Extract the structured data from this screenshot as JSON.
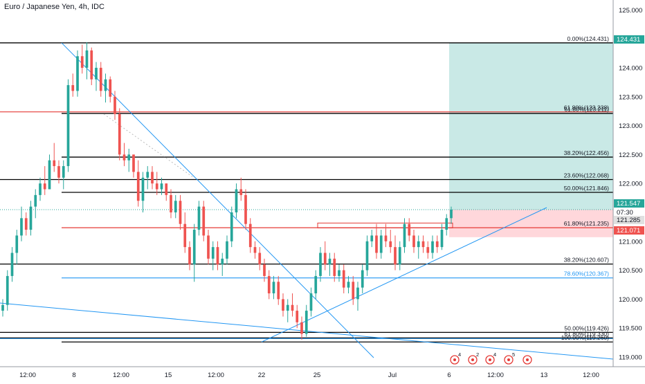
{
  "symbol": {
    "title": "Euro / Japanese Yen, 4h, IDC"
  },
  "colors": {
    "up": "#26a69a",
    "down": "#ef5350",
    "black_line": "#000000",
    "red_line": "#e53935",
    "blue_line": "#2196f3",
    "target_zone": "#b2dfdb",
    "stop_zone": "#ffcdd2",
    "axis_text": "#131722"
  },
  "chart_data": {
    "type": "candlestick",
    "y_axis": {
      "range": [
        118.74,
        125.1
      ],
      "ticks": [
        "125.000",
        "124.500",
        "124.000",
        "123.500",
        "123.000",
        "122.500",
        "122.000",
        "121.500",
        "121.000",
        "120.500",
        "120.000",
        "119.500",
        "119.000"
      ]
    },
    "x_axis": {
      "ticks": [
        "12:00",
        "8",
        "12:00",
        "15",
        "12:00",
        "22",
        "25",
        "Jul",
        "6",
        "12:00",
        "13",
        "12:00"
      ]
    },
    "price_labels": [
      {
        "text": "124.431",
        "value": 124.431,
        "color": "#26a69a"
      },
      {
        "text": "121.547",
        "value": 121.547,
        "color": "#26a69a"
      },
      {
        "text": "07:30",
        "value": 121.39,
        "color": "#ffffff"
      },
      {
        "text": "121.285",
        "value": 121.285,
        "color": "#e0e0e0"
      },
      {
        "text": "121.071",
        "value": 121.071,
        "color": "#ef5350"
      }
    ],
    "fib_levels": [
      {
        "label": "0.00%(124.431)",
        "value": 124.431,
        "color": "black"
      },
      {
        "label": "61.80%(123.238)",
        "value": 123.238,
        "color": "red"
      },
      {
        "label": "61.80%(123.211)",
        "value": 123.211,
        "color": "black"
      },
      {
        "label": "38.20%(122.456)",
        "value": 122.456,
        "color": "black"
      },
      {
        "label": "23.60%(122.068)",
        "value": 122.068,
        "color": "black"
      },
      {
        "label": "50.00%(121.846)",
        "value": 121.846,
        "color": "black"
      },
      {
        "label": "61.80%(121.235)",
        "value": 121.235,
        "color": "red"
      },
      {
        "label": "38.20%(120.607)",
        "value": 120.607,
        "color": "black"
      },
      {
        "label": "78.60%(120.367)",
        "value": 120.367,
        "color": "blue"
      },
      {
        "label": "50.00%(119.426)",
        "value": 119.426,
        "color": "black"
      },
      {
        "label": "61.80%(119.330)",
        "value": 119.33,
        "color": "black"
      },
      {
        "label": "100.00%(119.260)",
        "value": 119.26,
        "color": "black"
      }
    ],
    "events": [
      "4",
      "2",
      "4",
      "5"
    ],
    "candles": [
      {
        "o": 119.8,
        "h": 120.0,
        "l": 119.7,
        "c": 119.9
      },
      {
        "o": 119.9,
        "h": 120.5,
        "l": 119.8,
        "c": 120.4
      },
      {
        "o": 120.4,
        "h": 120.9,
        "l": 120.3,
        "c": 120.8
      },
      {
        "o": 120.8,
        "h": 121.2,
        "l": 120.6,
        "c": 121.1
      },
      {
        "o": 121.1,
        "h": 121.6,
        "l": 121.0,
        "c": 121.4
      },
      {
        "o": 121.4,
        "h": 121.5,
        "l": 121.1,
        "c": 121.2
      },
      {
        "o": 121.2,
        "h": 121.7,
        "l": 121.1,
        "c": 121.6
      },
      {
        "o": 121.6,
        "h": 121.9,
        "l": 121.4,
        "c": 121.8
      },
      {
        "o": 121.8,
        "h": 122.1,
        "l": 121.7,
        "c": 122.0
      },
      {
        "o": 122.0,
        "h": 122.3,
        "l": 121.8,
        "c": 121.9
      },
      {
        "o": 121.9,
        "h": 122.5,
        "l": 121.9,
        "c": 122.4
      },
      {
        "o": 122.4,
        "h": 122.7,
        "l": 122.2,
        "c": 122.3
      },
      {
        "o": 122.3,
        "h": 122.4,
        "l": 122.0,
        "c": 122.1
      },
      {
        "o": 122.1,
        "h": 122.4,
        "l": 121.9,
        "c": 122.3
      },
      {
        "o": 122.3,
        "h": 123.8,
        "l": 122.2,
        "c": 123.7
      },
      {
        "o": 123.7,
        "h": 123.9,
        "l": 123.5,
        "c": 123.6
      },
      {
        "o": 123.6,
        "h": 124.3,
        "l": 123.5,
        "c": 124.2
      },
      {
        "o": 124.2,
        "h": 124.4,
        "l": 123.9,
        "c": 124.0
      },
      {
        "o": 124.0,
        "h": 124.44,
        "l": 123.8,
        "c": 124.3
      },
      {
        "o": 124.3,
        "h": 124.35,
        "l": 123.7,
        "c": 123.8
      },
      {
        "o": 123.8,
        "h": 124.1,
        "l": 123.6,
        "c": 124.0
      },
      {
        "o": 124.0,
        "h": 124.1,
        "l": 123.5,
        "c": 123.6
      },
      {
        "o": 123.6,
        "h": 123.9,
        "l": 123.4,
        "c": 123.8
      },
      {
        "o": 123.8,
        "h": 123.85,
        "l": 123.4,
        "c": 123.5
      },
      {
        "o": 123.5,
        "h": 123.6,
        "l": 123.1,
        "c": 123.2
      },
      {
        "o": 123.2,
        "h": 123.3,
        "l": 122.4,
        "c": 122.5
      },
      {
        "o": 122.5,
        "h": 122.7,
        "l": 122.3,
        "c": 122.4
      },
      {
        "o": 122.4,
        "h": 122.6,
        "l": 122.2,
        "c": 122.5
      },
      {
        "o": 122.5,
        "h": 122.5,
        "l": 122.1,
        "c": 122.2
      },
      {
        "o": 122.2,
        "h": 122.4,
        "l": 121.6,
        "c": 121.7
      },
      {
        "o": 121.7,
        "h": 122.2,
        "l": 121.5,
        "c": 122.1
      },
      {
        "o": 122.1,
        "h": 122.3,
        "l": 121.9,
        "c": 122.2
      },
      {
        "o": 122.2,
        "h": 122.3,
        "l": 121.9,
        "c": 122.0
      },
      {
        "o": 122.0,
        "h": 122.2,
        "l": 121.8,
        "c": 121.9
      },
      {
        "o": 121.9,
        "h": 122.1,
        "l": 121.8,
        "c": 122.0
      },
      {
        "o": 122.0,
        "h": 122.0,
        "l": 121.7,
        "c": 121.8
      },
      {
        "o": 121.8,
        "h": 121.9,
        "l": 121.4,
        "c": 121.5
      },
      {
        "o": 121.5,
        "h": 121.8,
        "l": 121.4,
        "c": 121.7
      },
      {
        "o": 121.7,
        "h": 121.8,
        "l": 121.2,
        "c": 121.3
      },
      {
        "o": 121.3,
        "h": 121.5,
        "l": 120.8,
        "c": 120.9
      },
      {
        "o": 120.9,
        "h": 121.0,
        "l": 120.5,
        "c": 120.6
      },
      {
        "o": 120.6,
        "h": 121.3,
        "l": 120.3,
        "c": 121.2
      },
      {
        "o": 121.2,
        "h": 121.7,
        "l": 121.1,
        "c": 121.6
      },
      {
        "o": 121.6,
        "h": 121.7,
        "l": 121.0,
        "c": 121.1
      },
      {
        "o": 121.1,
        "h": 121.2,
        "l": 120.6,
        "c": 120.7
      },
      {
        "o": 120.7,
        "h": 121.0,
        "l": 120.5,
        "c": 120.9
      },
      {
        "o": 120.9,
        "h": 121.0,
        "l": 120.5,
        "c": 120.6
      },
      {
        "o": 120.6,
        "h": 120.8,
        "l": 120.4,
        "c": 120.7
      },
      {
        "o": 120.7,
        "h": 121.1,
        "l": 120.6,
        "c": 121.0
      },
      {
        "o": 121.0,
        "h": 121.6,
        "l": 120.9,
        "c": 121.5
      },
      {
        "o": 121.5,
        "h": 122.0,
        "l": 121.4,
        "c": 121.9
      },
      {
        "o": 121.9,
        "h": 122.1,
        "l": 121.7,
        "c": 121.8
      },
      {
        "o": 121.8,
        "h": 121.9,
        "l": 121.2,
        "c": 121.3
      },
      {
        "o": 121.3,
        "h": 121.4,
        "l": 120.8,
        "c": 120.9
      },
      {
        "o": 120.9,
        "h": 121.0,
        "l": 120.7,
        "c": 120.8
      },
      {
        "o": 120.8,
        "h": 120.9,
        "l": 120.5,
        "c": 120.6
      },
      {
        "o": 120.6,
        "h": 120.7,
        "l": 120.3,
        "c": 120.4
      },
      {
        "o": 120.4,
        "h": 120.5,
        "l": 120.0,
        "c": 120.1
      },
      {
        "o": 120.1,
        "h": 120.4,
        "l": 120.0,
        "c": 120.3
      },
      {
        "o": 120.3,
        "h": 120.4,
        "l": 119.9,
        "c": 120.0
      },
      {
        "o": 120.0,
        "h": 120.1,
        "l": 119.7,
        "c": 119.8
      },
      {
        "o": 119.8,
        "h": 120.0,
        "l": 119.6,
        "c": 119.9
      },
      {
        "o": 119.9,
        "h": 120.1,
        "l": 119.7,
        "c": 119.8
      },
      {
        "o": 119.8,
        "h": 119.9,
        "l": 119.5,
        "c": 119.6
      },
      {
        "o": 119.6,
        "h": 119.7,
        "l": 119.3,
        "c": 119.4
      },
      {
        "o": 119.4,
        "h": 119.9,
        "l": 119.35,
        "c": 119.8
      },
      {
        "o": 119.8,
        "h": 120.2,
        "l": 119.7,
        "c": 120.1
      },
      {
        "o": 120.1,
        "h": 120.5,
        "l": 120.0,
        "c": 120.4
      },
      {
        "o": 120.4,
        "h": 120.9,
        "l": 120.3,
        "c": 120.8
      },
      {
        "o": 120.8,
        "h": 121.0,
        "l": 120.5,
        "c": 120.6
      },
      {
        "o": 120.6,
        "h": 120.8,
        "l": 120.4,
        "c": 120.7
      },
      {
        "o": 120.7,
        "h": 120.8,
        "l": 120.3,
        "c": 120.4
      },
      {
        "o": 120.4,
        "h": 120.6,
        "l": 120.3,
        "c": 120.5
      },
      {
        "o": 120.5,
        "h": 120.6,
        "l": 120.1,
        "c": 120.2
      },
      {
        "o": 120.2,
        "h": 120.4,
        "l": 120.1,
        "c": 120.3
      },
      {
        "o": 120.3,
        "h": 120.4,
        "l": 119.9,
        "c": 120.0
      },
      {
        "o": 120.0,
        "h": 120.3,
        "l": 119.8,
        "c": 120.2
      },
      {
        "o": 120.2,
        "h": 120.6,
        "l": 120.1,
        "c": 120.5
      },
      {
        "o": 120.5,
        "h": 121.1,
        "l": 120.4,
        "c": 121.0
      },
      {
        "o": 121.0,
        "h": 121.2,
        "l": 120.9,
        "c": 121.1
      },
      {
        "o": 121.1,
        "h": 121.3,
        "l": 120.7,
        "c": 120.8
      },
      {
        "o": 120.8,
        "h": 121.2,
        "l": 120.7,
        "c": 121.1
      },
      {
        "o": 121.1,
        "h": 121.3,
        "l": 120.9,
        "c": 121.0
      },
      {
        "o": 121.0,
        "h": 121.2,
        "l": 120.8,
        "c": 120.9
      },
      {
        "o": 120.9,
        "h": 121.1,
        "l": 120.5,
        "c": 120.6
      },
      {
        "o": 120.6,
        "h": 121.0,
        "l": 120.5,
        "c": 120.9
      },
      {
        "o": 120.9,
        "h": 121.4,
        "l": 120.8,
        "c": 121.3
      },
      {
        "o": 121.3,
        "h": 121.4,
        "l": 121.0,
        "c": 121.1
      },
      {
        "o": 121.1,
        "h": 121.2,
        "l": 120.8,
        "c": 120.9
      },
      {
        "o": 120.9,
        "h": 121.1,
        "l": 120.7,
        "c": 121.0
      },
      {
        "o": 121.0,
        "h": 121.1,
        "l": 120.8,
        "c": 120.9
      },
      {
        "o": 120.9,
        "h": 121.0,
        "l": 120.7,
        "c": 120.8
      },
      {
        "o": 120.8,
        "h": 121.1,
        "l": 120.7,
        "c": 121.0
      },
      {
        "o": 121.0,
        "h": 121.1,
        "l": 120.8,
        "c": 120.9
      },
      {
        "o": 120.9,
        "h": 121.3,
        "l": 120.85,
        "c": 121.2
      },
      {
        "o": 121.2,
        "h": 121.47,
        "l": 121.1,
        "c": 121.4
      },
      {
        "o": 121.4,
        "h": 121.6,
        "l": 121.3,
        "c": 121.547
      }
    ]
  }
}
